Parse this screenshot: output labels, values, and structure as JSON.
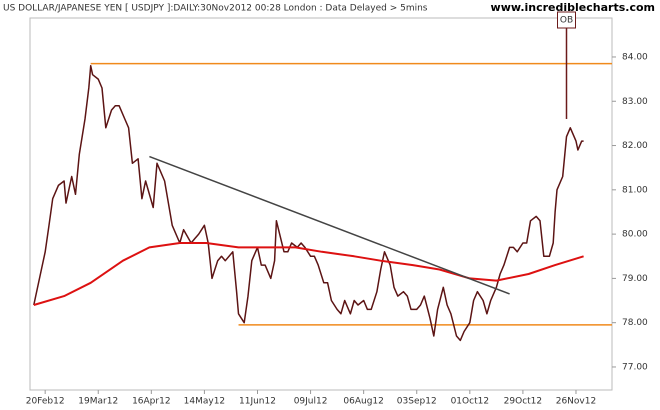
{
  "chart_data": {
    "type": "line",
    "title": "US DOLLAR/JAPANESE YEN [ USDJPY ]:DAILY:30Nov2012 00:28 London : Data Delayed > 5mins",
    "watermark": "www.incrediblecharts.com",
    "xlim": [
      "2012-02-12",
      "2012-12-15"
    ],
    "xticks": [
      {
        "value": "2012-02-20",
        "label": "20Feb12"
      },
      {
        "value": "2012-03-19",
        "label": "19Mar12"
      },
      {
        "value": "2012-04-16",
        "label": "16Apr12"
      },
      {
        "value": "2012-05-14",
        "label": "14May12"
      },
      {
        "value": "2012-06-11",
        "label": "11Jun12"
      },
      {
        "value": "2012-07-09",
        "label": "09Jul12"
      },
      {
        "value": "2012-08-06",
        "label": "06Aug12"
      },
      {
        "value": "2012-09-03",
        "label": "03Sep12"
      },
      {
        "value": "2012-10-01",
        "label": "01Oct12"
      },
      {
        "value": "2012-10-29",
        "label": "29Oct12"
      },
      {
        "value": "2012-11-26",
        "label": "26Nov12"
      }
    ],
    "ylim": [
      76.48,
      84.88
    ],
    "yticks": [
      {
        "value": 77,
        "label": "77.00"
      },
      {
        "value": 78,
        "label": "78.00"
      },
      {
        "value": 79,
        "label": "79.00"
      },
      {
        "value": 80,
        "label": "80.00"
      },
      {
        "value": 81,
        "label": "81.00"
      },
      {
        "value": 82,
        "label": "82.00"
      },
      {
        "value": 83,
        "label": "83.00"
      },
      {
        "value": 84,
        "label": "84.00"
      }
    ],
    "series": [
      {
        "color": "#5c1414",
        "x": [
          "2012-02-14",
          "2012-02-17",
          "2012-02-20",
          "2012-02-22",
          "2012-02-24",
          "2012-02-27",
          "2012-03-01",
          "2012-03-02",
          "2012-03-05",
          "2012-03-07",
          "2012-03-09",
          "2012-03-12",
          "2012-03-14",
          "2012-03-15",
          "2012-03-16",
          "2012-03-19",
          "2012-03-21",
          "2012-03-23",
          "2012-03-26",
          "2012-03-28",
          "2012-03-30",
          "2012-04-02",
          "2012-04-04",
          "2012-04-06",
          "2012-04-09",
          "2012-04-11",
          "2012-04-13",
          "2012-04-17",
          "2012-04-19",
          "2012-04-20",
          "2012-04-23",
          "2012-04-25",
          "2012-04-27",
          "2012-05-01",
          "2012-05-03",
          "2012-05-07",
          "2012-05-09",
          "2012-05-11",
          "2012-05-14",
          "2012-05-16",
          "2012-05-18",
          "2012-05-21",
          "2012-05-23",
          "2012-05-25",
          "2012-05-29",
          "2012-05-31",
          "2012-06-01",
          "2012-06-04",
          "2012-06-06",
          "2012-06-08",
          "2012-06-11",
          "2012-06-13",
          "2012-06-15",
          "2012-06-18",
          "2012-06-20",
          "2012-06-21",
          "2012-06-25",
          "2012-06-27",
          "2012-06-29",
          "2012-07-02",
          "2012-07-04",
          "2012-07-06",
          "2012-07-09",
          "2012-07-11",
          "2012-07-13",
          "2012-07-16",
          "2012-07-18",
          "2012-07-20",
          "2012-07-23",
          "2012-07-25",
          "2012-07-27",
          "2012-07-30",
          "2012-08-01",
          "2012-08-03",
          "2012-08-06",
          "2012-08-08",
          "2012-08-10",
          "2012-08-13",
          "2012-08-15",
          "2012-08-17",
          "2012-08-20",
          "2012-08-22",
          "2012-08-24",
          "2012-08-27",
          "2012-08-29",
          "2012-08-31",
          "2012-09-03",
          "2012-09-05",
          "2012-09-07",
          "2012-09-10",
          "2012-09-12",
          "2012-09-14",
          "2012-09-17",
          "2012-09-19",
          "2012-09-21",
          "2012-09-24",
          "2012-09-26",
          "2012-09-28",
          "2012-10-01",
          "2012-10-03",
          "2012-10-05",
          "2012-10-08",
          "2012-10-10",
          "2012-10-12",
          "2012-10-15",
          "2012-10-17",
          "2012-10-19",
          "2012-10-22",
          "2012-10-24",
          "2012-10-26",
          "2012-10-29",
          "2012-10-31",
          "2012-11-02",
          "2012-11-05",
          "2012-11-07",
          "2012-11-09",
          "2012-11-12",
          "2012-11-14",
          "2012-11-15",
          "2012-11-16",
          "2012-11-19",
          "2012-11-21",
          "2012-11-23",
          "2012-11-26",
          "2012-11-27",
          "2012-11-29",
          "2012-11-30"
        ],
        "values": [
          78.4,
          79.0,
          79.6,
          80.2,
          80.8,
          81.1,
          81.2,
          80.7,
          81.3,
          80.9,
          81.8,
          82.6,
          83.3,
          83.8,
          83.6,
          83.5,
          83.3,
          82.4,
          82.8,
          82.9,
          82.9,
          82.6,
          82.4,
          81.6,
          81.7,
          80.8,
          81.2,
          80.6,
          81.6,
          81.5,
          81.2,
          80.7,
          80.2,
          79.8,
          80.1,
          79.8,
          79.9,
          80.0,
          80.2,
          79.8,
          79.0,
          79.4,
          79.5,
          79.4,
          79.6,
          78.7,
          78.2,
          78.0,
          78.6,
          79.4,
          79.7,
          79.3,
          79.3,
          79.0,
          79.4,
          80.3,
          79.6,
          79.6,
          79.8,
          79.7,
          79.8,
          79.7,
          79.5,
          79.5,
          79.3,
          78.9,
          78.9,
          78.5,
          78.3,
          78.2,
          78.5,
          78.2,
          78.5,
          78.4,
          78.5,
          78.3,
          78.3,
          78.7,
          79.2,
          79.6,
          79.3,
          78.8,
          78.6,
          78.7,
          78.6,
          78.3,
          78.3,
          78.4,
          78.6,
          78.1,
          77.7,
          78.3,
          78.8,
          78.4,
          78.2,
          77.7,
          77.6,
          77.8,
          78.0,
          78.5,
          78.7,
          78.5,
          78.2,
          78.5,
          78.8,
          79.1,
          79.3,
          79.7,
          79.7,
          79.6,
          79.8,
          79.8,
          80.3,
          80.4,
          80.3,
          79.5,
          79.5,
          79.8,
          80.5,
          81.0,
          81.3,
          82.2,
          82.4,
          82.1,
          81.9,
          82.1,
          82.1
        ]
      },
      {
        "color": "#dd1111",
        "x": [
          "2012-02-14",
          "2012-03-01",
          "2012-03-15",
          "2012-04-01",
          "2012-04-15",
          "2012-05-01",
          "2012-05-15",
          "2012-06-01",
          "2012-06-15",
          "2012-07-01",
          "2012-07-15",
          "2012-08-01",
          "2012-08-15",
          "2012-09-01",
          "2012-09-15",
          "2012-10-01",
          "2012-10-15",
          "2012-11-01",
          "2012-11-15",
          "2012-11-30"
        ],
        "values": [
          78.4,
          78.6,
          78.9,
          79.4,
          79.7,
          79.8,
          79.8,
          79.7,
          79.7,
          79.7,
          79.6,
          79.5,
          79.4,
          79.3,
          79.2,
          79.0,
          78.95,
          79.1,
          79.3,
          79.5
        ]
      }
    ],
    "hlines": [
      {
        "value": 83.85,
        "start": "2012-03-15",
        "color": "#f08a1c"
      },
      {
        "value": 77.95,
        "start": "2012-06-01",
        "color": "#f08a1c"
      }
    ],
    "trendlines": [
      {
        "x": [
          "2012-04-15",
          "2012-10-22"
        ],
        "values": [
          81.75,
          78.65
        ],
        "color": "#444444"
      }
    ],
    "annotations": [
      {
        "label": "OB",
        "x": "2012-11-21",
        "value": 82.6,
        "color": "#6b1a1a"
      }
    ]
  }
}
